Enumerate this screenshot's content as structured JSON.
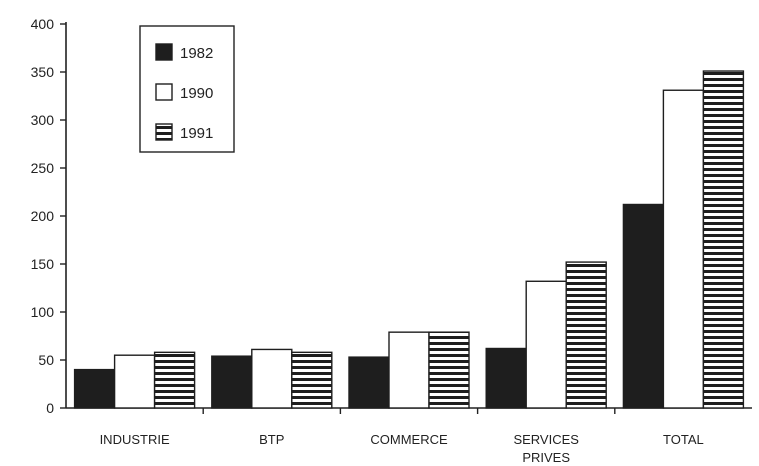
{
  "chart_data": {
    "type": "bar",
    "categories": [
      "INDUSTRIE",
      "BTP",
      "COMMERCE",
      "SERVICES PRIVES",
      "TOTAL"
    ],
    "series": [
      {
        "name": "1982",
        "values": [
          40,
          54,
          53,
          62,
          212
        ],
        "color": "#1e1e1e",
        "pattern": "solid"
      },
      {
        "name": "1990",
        "values": [
          55,
          61,
          79,
          132,
          331
        ],
        "color": "#ffffff",
        "pattern": "outline"
      },
      {
        "name": "1991",
        "values": [
          58,
          58,
          79,
          152,
          351
        ],
        "color": "#1e1e1e",
        "pattern": "horizontal-stripes"
      }
    ],
    "ylim": [
      0,
      400
    ],
    "yticks": [
      0,
      50,
      100,
      150,
      200,
      250,
      300,
      350,
      400
    ],
    "grid": false,
    "legend": "top-left"
  }
}
